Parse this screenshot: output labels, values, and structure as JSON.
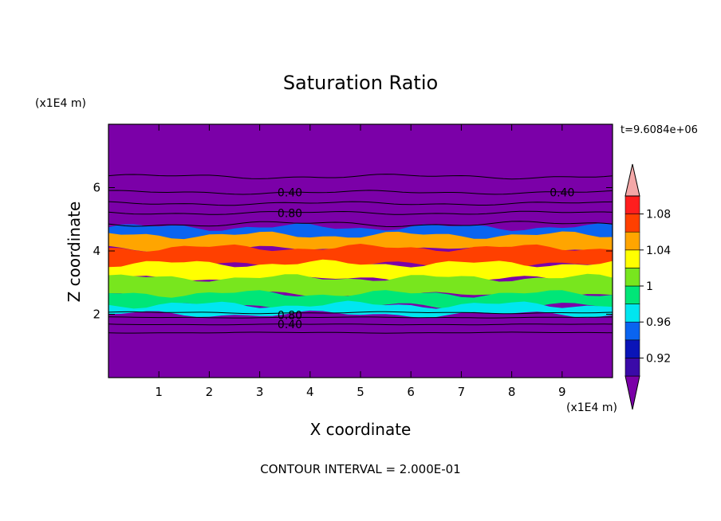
{
  "chart_data": {
    "type": "heatmap",
    "title": "Saturation Ratio",
    "xlabel": "X coordinate",
    "ylabel": "Z coordinate",
    "x_unit": "(x1E4 m)",
    "y_unit": "(x1E4 m)",
    "time_label": "t=9.6084e+06",
    "footer": "CONTOUR INTERVAL = 2.000E-01",
    "xlim": [
      0,
      10
    ],
    "ylim": [
      0,
      8
    ],
    "x_ticks": [
      1,
      2,
      3,
      4,
      5,
      6,
      7,
      8,
      9
    ],
    "y_ticks": [
      2,
      4,
      6
    ],
    "colorbar": {
      "levels": [
        0.9,
        0.92,
        0.94,
        0.96,
        0.98,
        1.0,
        1.02,
        1.04,
        1.06,
        1.08,
        1.1
      ],
      "colors": [
        "#7b00a8",
        "#3a0aa8",
        "#0a14b8",
        "#0a64f0",
        "#00e6f0",
        "#00e678",
        "#78e61e",
        "#ffff00",
        "#ffa500",
        "#ff4000",
        "#ff1e1e",
        "#f4a8a8"
      ],
      "tick_labels": [
        {
          "value": 0.92,
          "label": "0.92"
        },
        {
          "value": 0.96,
          "label": "0.96"
        },
        {
          "value": 1.0,
          "label": "1"
        },
        {
          "value": 1.04,
          "label": "1.04"
        },
        {
          "value": 1.08,
          "label": "1.08"
        }
      ]
    },
    "contour_labels": [
      {
        "x": 3.6,
        "z": 5.85,
        "label": "0.40"
      },
      {
        "x": 9.0,
        "z": 5.85,
        "label": "0.40"
      },
      {
        "x": 3.6,
        "z": 5.2,
        "label": "0.80"
      },
      {
        "x": 3.6,
        "z": 1.98,
        "label": "0.80"
      },
      {
        "x": 3.6,
        "z": 1.68,
        "label": "0.40"
      }
    ],
    "bands": [
      {
        "z_bottom": 4.3,
        "z_top": 4.75,
        "color": "#0a64f0"
      },
      {
        "z_bottom": 4.05,
        "z_top": 4.5,
        "color": "#ffa500"
      },
      {
        "z_bottom": 3.55,
        "z_top": 4.1,
        "color": "#ff4000"
      },
      {
        "z_bottom": 3.1,
        "z_top": 3.6,
        "color": "#ffff00"
      },
      {
        "z_bottom": 2.6,
        "z_top": 3.15,
        "color": "#78e61e"
      },
      {
        "z_bottom": 2.25,
        "z_top": 2.65,
        "color": "#00e678"
      },
      {
        "z_bottom": 2.0,
        "z_top": 2.3,
        "color": "#00e6f0"
      }
    ]
  }
}
